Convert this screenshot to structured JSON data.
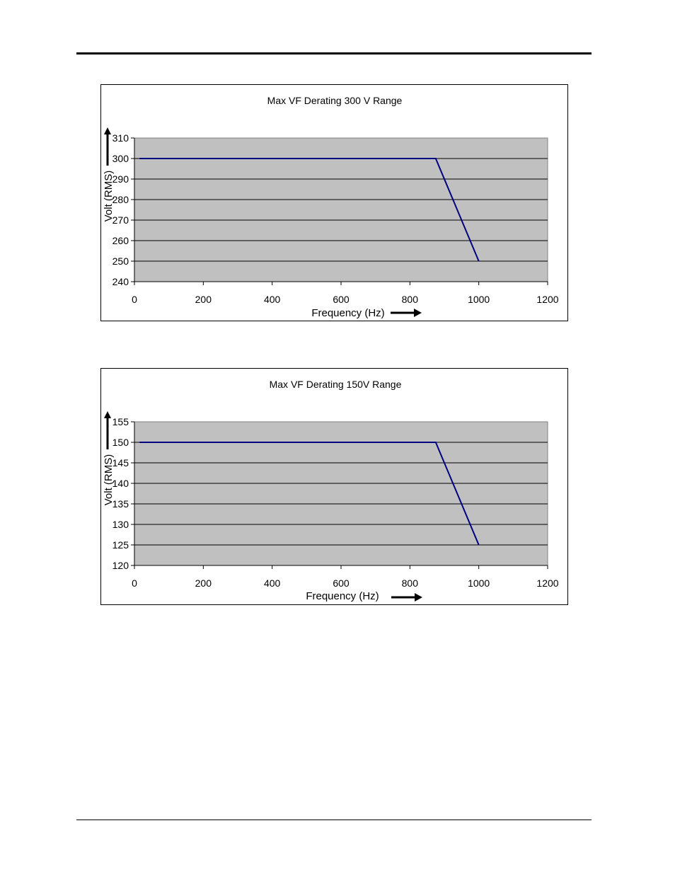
{
  "page": {},
  "chart_data": [
    {
      "type": "line",
      "title": "Max VF Derating 300 V Range",
      "xlabel": "Frequency (Hz)",
      "ylabel": "Volt (RMS)",
      "xlim": [
        0,
        1200
      ],
      "ylim": [
        240,
        310
      ],
      "xticks": [
        0,
        200,
        400,
        600,
        800,
        1000,
        1200
      ],
      "yticks": [
        240,
        250,
        260,
        270,
        280,
        290,
        300,
        310
      ],
      "grid": true,
      "plot_background": "#C0C0C0",
      "series": [
        {
          "color": "#000080",
          "x": [
            15,
            875,
            1000
          ],
          "y": [
            300,
            300,
            250
          ]
        }
      ]
    },
    {
      "type": "line",
      "title": "Max VF Derating 150V Range",
      "xlabel": "Frequency (Hz)",
      "ylabel": "Volt (RMS)",
      "xlim": [
        0,
        1200
      ],
      "ylim": [
        120,
        155
      ],
      "xticks": [
        0,
        200,
        400,
        600,
        800,
        1000,
        1200
      ],
      "yticks": [
        120,
        125,
        130,
        135,
        140,
        145,
        150,
        155
      ],
      "grid": true,
      "plot_background": "#C0C0C0",
      "series": [
        {
          "color": "#000080",
          "x": [
            15,
            875,
            1000
          ],
          "y": [
            150,
            150,
            125
          ]
        }
      ]
    }
  ]
}
